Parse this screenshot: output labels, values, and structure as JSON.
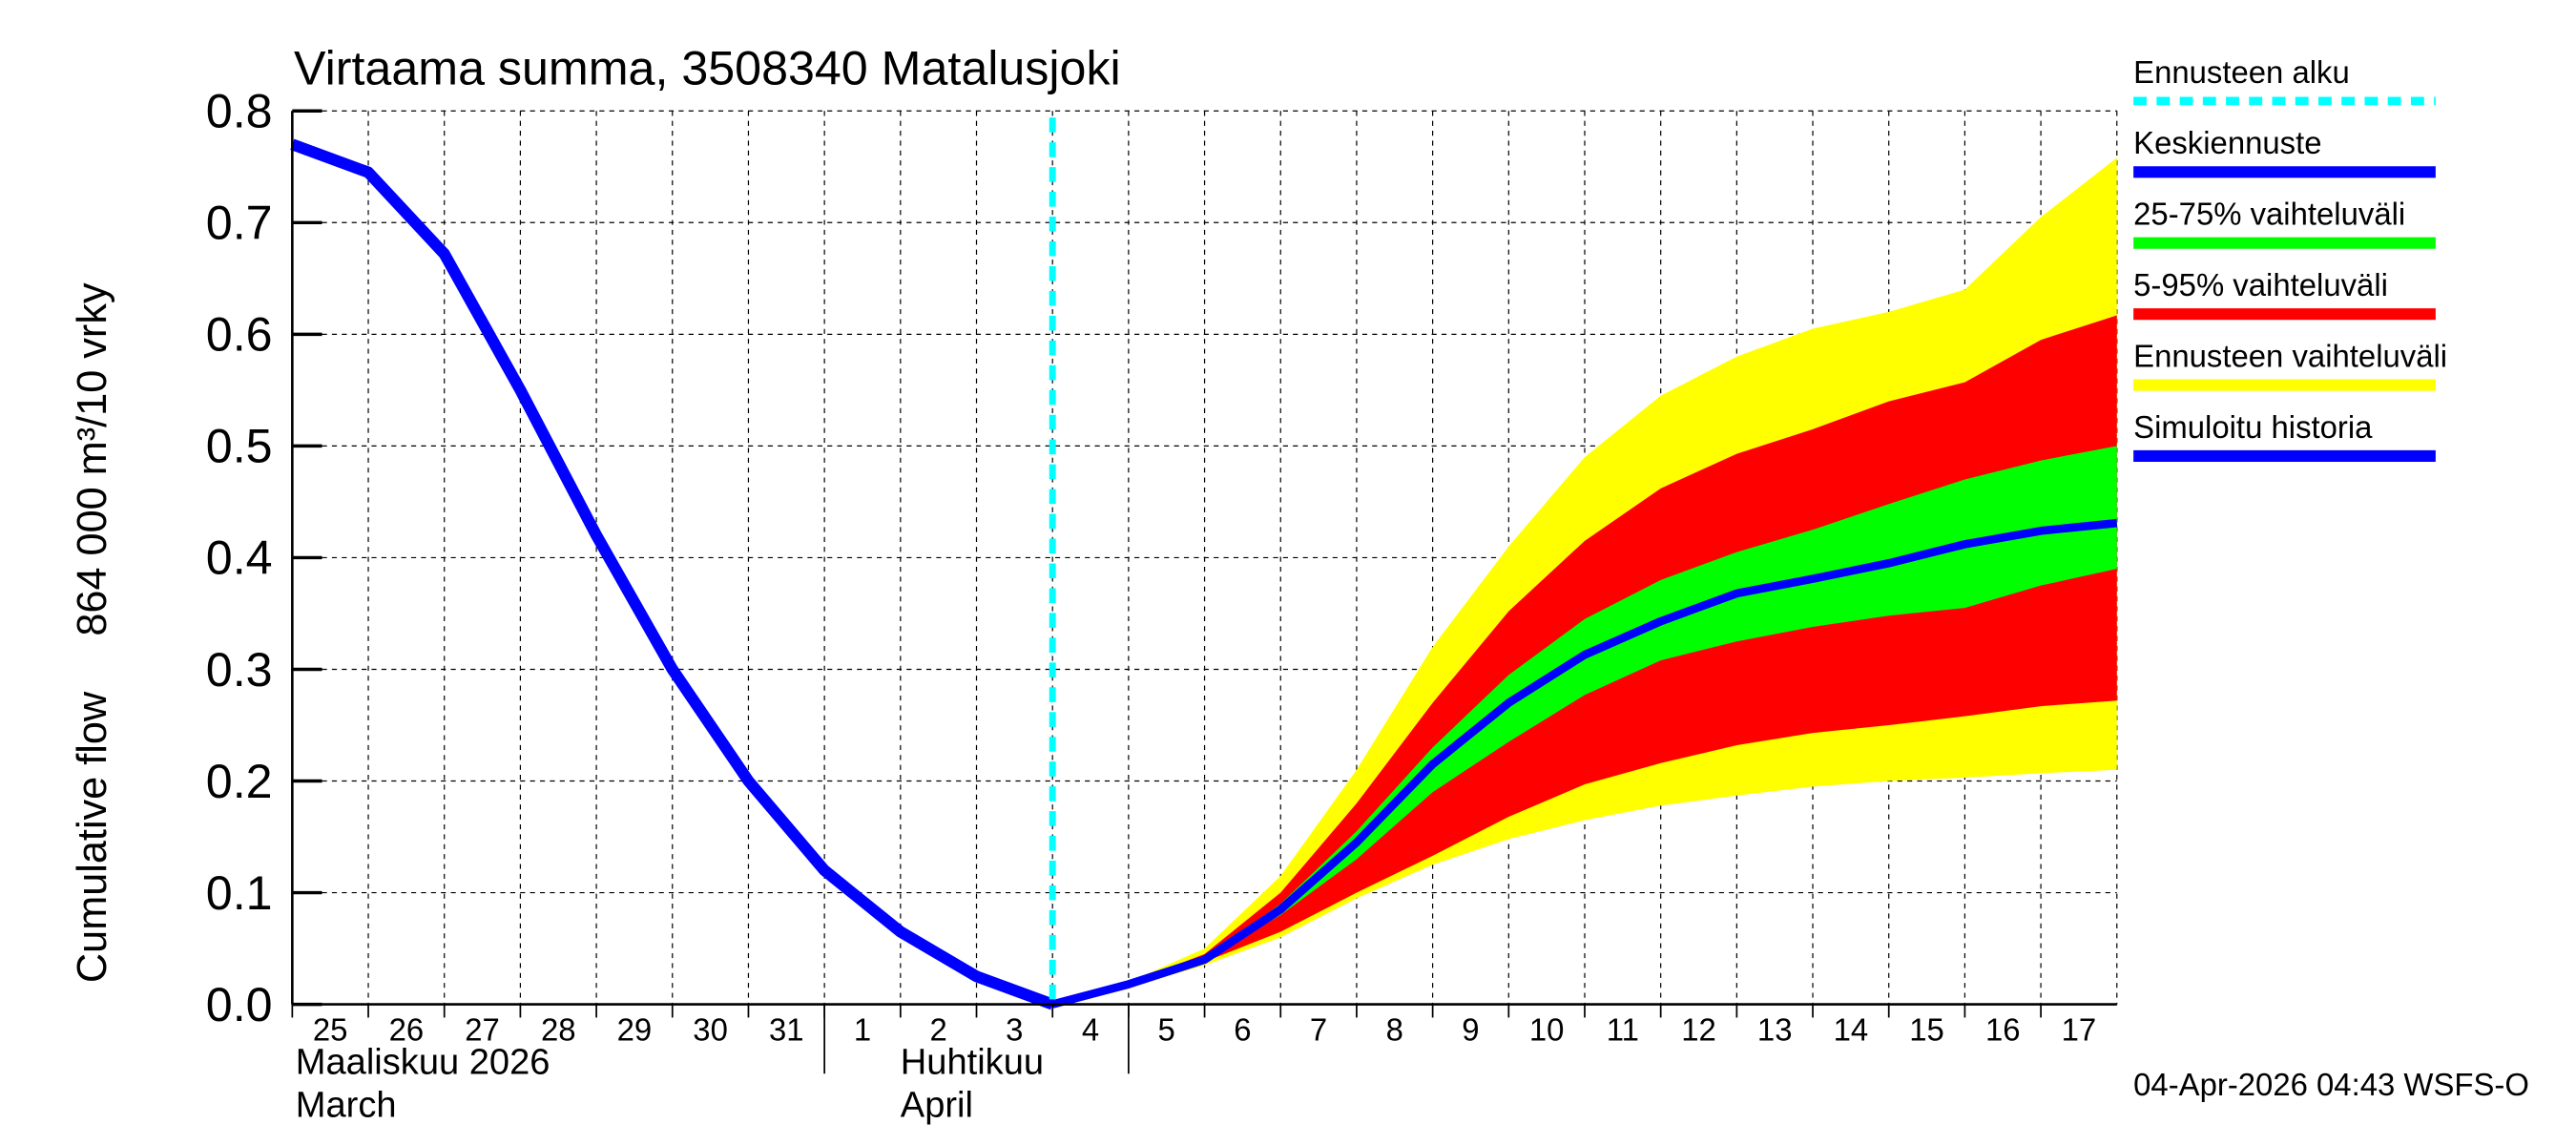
{
  "chart_data": {
    "type": "area",
    "title": "Virtaama summa, 3508340 Matalusjoki",
    "ylabel_top": "864 000 m³/10 vrky",
    "ylabel_bottom": "Cumulative flow",
    "ylim": [
      0,
      0.8
    ],
    "yticks": [
      "0.0",
      "0.1",
      "0.2",
      "0.3",
      "0.4",
      "0.5",
      "0.6",
      "0.7",
      "0.8"
    ],
    "x_day_labels": [
      "25",
      "26",
      "27",
      "28",
      "29",
      "30",
      "31",
      "1",
      "2",
      "3",
      "4",
      "5",
      "6",
      "7",
      "8",
      "9",
      "10",
      "11",
      "12",
      "13",
      "14",
      "15",
      "16",
      "17"
    ],
    "month_labels": [
      {
        "line1": "Maaliskuu 2026",
        "line2": "March"
      },
      {
        "line1": "Huhtikuu",
        "line2": "April"
      }
    ],
    "forecast_start_index": 10,
    "grid": true,
    "legend_position": "right",
    "legend": [
      {
        "label": "Ennusteen alku",
        "color": "#00ffff",
        "style": "dashed"
      },
      {
        "label": "Keskiennuste",
        "color": "#0000ff",
        "style": "solid"
      },
      {
        "label": "25-75% vaihteluväli",
        "color": "#00ff00",
        "style": "solid"
      },
      {
        "label": "5-95% vaihteluväli",
        "color": "#ff0000",
        "style": "solid"
      },
      {
        "label": "Ennusteen vaihteluväli",
        "color": "#ffff00",
        "style": "solid"
      },
      {
        "label": "Simuloitu historia",
        "color": "#0000ff",
        "style": "solid"
      }
    ],
    "history": {
      "x": [
        0,
        1,
        2,
        3,
        4,
        5,
        6,
        7,
        8,
        9,
        10
      ],
      "y": [
        0.77,
        0.745,
        0.672,
        0.55,
        0.42,
        0.3,
        0.2,
        0.12,
        0.065,
        0.025,
        0.0
      ]
    },
    "forecast_x": [
      10,
      11,
      12,
      13,
      14,
      15,
      16,
      17,
      18,
      19,
      20,
      21,
      22,
      23,
      24
    ],
    "median": [
      0,
      0.018,
      0.04,
      0.085,
      0.145,
      0.215,
      0.27,
      0.313,
      0.343,
      0.368,
      0.381,
      0.395,
      0.412,
      0.424,
      0.431
    ],
    "range_upper": [
      0,
      0.02,
      0.05,
      0.115,
      0.21,
      0.32,
      0.41,
      0.49,
      0.545,
      0.58,
      0.605,
      0.62,
      0.64,
      0.705,
      0.758
    ],
    "range_lower": [
      0,
      0.015,
      0.035,
      0.06,
      0.095,
      0.125,
      0.148,
      0.165,
      0.178,
      0.187,
      0.195,
      0.2,
      0.203,
      0.207,
      0.21
    ],
    "p5_95_upper": [
      0,
      0.019,
      0.045,
      0.1,
      0.18,
      0.27,
      0.352,
      0.415,
      0.462,
      0.493,
      0.515,
      0.54,
      0.557,
      0.595,
      0.617
    ],
    "p5_95_lower": [
      0,
      0.016,
      0.038,
      0.065,
      0.1,
      0.133,
      0.168,
      0.197,
      0.216,
      0.232,
      0.243,
      0.25,
      0.258,
      0.267,
      0.272
    ],
    "p25_75_upper": [
      0,
      0.018,
      0.042,
      0.09,
      0.155,
      0.23,
      0.295,
      0.345,
      0.38,
      0.405,
      0.425,
      0.448,
      0.47,
      0.487,
      0.5
    ],
    "p25_75_lower": [
      0,
      0.017,
      0.039,
      0.08,
      0.13,
      0.19,
      0.235,
      0.277,
      0.308,
      0.325,
      0.338,
      0.348,
      0.355,
      0.375,
      0.39
    ]
  },
  "footer": {
    "timestamp": "04-Apr-2026 04:43 WSFS-O"
  }
}
